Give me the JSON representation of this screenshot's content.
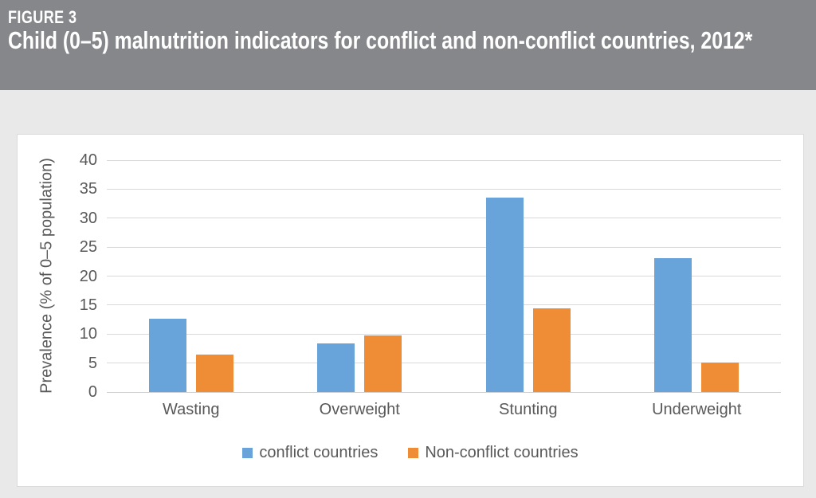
{
  "header": {
    "figure_label": "FIGURE 3",
    "title": "Child (0–5) malnutrition indicators for conflict and non-conflict countries, 2012*"
  },
  "colors": {
    "header_bg": "#85878A",
    "header_text": "#FFFFFF",
    "page_bg": "#E9E9E9",
    "panel_bg": "#FFFFFF",
    "gridline": "#D9D9D9",
    "axis_text": "#595959",
    "conflict_blue": "#68A3D9",
    "non_conflict_orange": "#EE8D36"
  },
  "chart_data": {
    "type": "bar",
    "categories": [
      "Wasting",
      "Overweight",
      "Stunting",
      "Underweight"
    ],
    "series": [
      {
        "name": "conflict countries",
        "color": "#68A3D9",
        "values": [
          12.7,
          8.4,
          33.5,
          23.1
        ]
      },
      {
        "name": "Non-conflict countries",
        "color": "#EE8D36",
        "values": [
          6.4,
          9.7,
          14.4,
          5.1
        ]
      }
    ],
    "title": "Child (0–5) malnutrition indicators for conflict and non-conflict countries, 2012*",
    "xlabel": "",
    "ylabel": "Prevalence (% of 0–5 population)",
    "ylim": [
      0,
      40
    ],
    "ytick_step": 5,
    "grid": true,
    "legend_position": "bottom"
  }
}
